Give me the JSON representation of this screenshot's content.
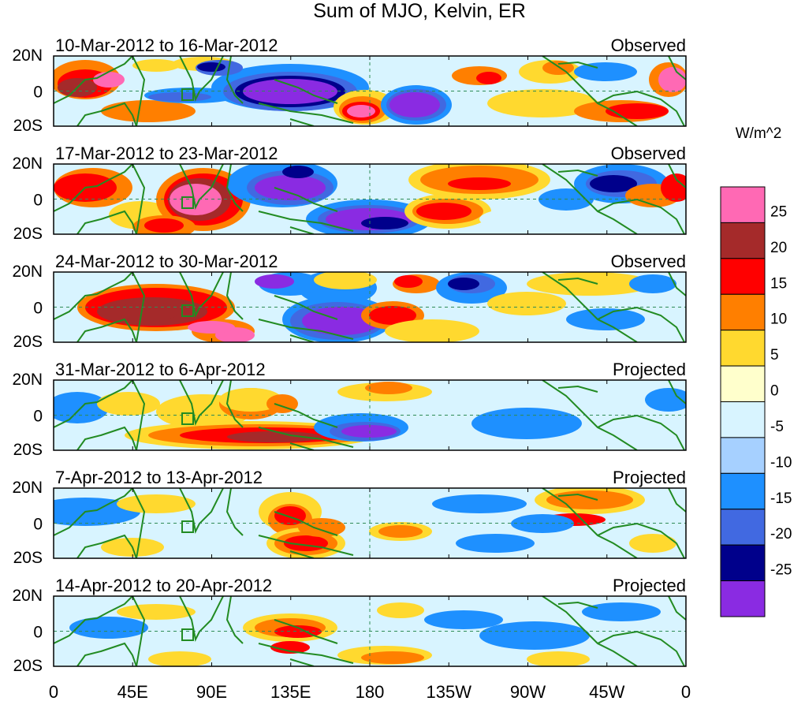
{
  "title": "Sum of MJO, Kelvin, ER",
  "units": "W/m^2",
  "lat_labels": [
    "20N",
    "0",
    "20S"
  ],
  "lon_labels": [
    "0",
    "45E",
    "90E",
    "135E",
    "180",
    "135W",
    "90W",
    "45W",
    "0"
  ],
  "panels": [
    {
      "date_range": "10-Mar-2012 to 16-Mar-2012",
      "status": "Observed"
    },
    {
      "date_range": "17-Mar-2012 to 23-Mar-2012",
      "status": "Observed"
    },
    {
      "date_range": "24-Mar-2012 to 30-Mar-2012",
      "status": "Observed"
    },
    {
      "date_range": "31-Mar-2012 to 6-Apr-2012",
      "status": "Projected"
    },
    {
      "date_range": "7-Apr-2012 to 13-Apr-2012",
      "status": "Projected"
    },
    {
      "date_range": "14-Apr-2012 to 20-Apr-2012",
      "status": "Projected"
    }
  ],
  "colorbar": {
    "colors": [
      "#ff69b4",
      "#a52a2a",
      "#ff0000",
      "#ff7f00",
      "#ffd92f",
      "#ffffcc",
      "#d8f4ff",
      "#a6d0ff",
      "#1e90ff",
      "#4169e1",
      "#00008b",
      "#8a2be2"
    ],
    "tick_labels": [
      "25",
      "20",
      "15",
      "10",
      "5",
      "0",
      "-5",
      "-10",
      "-15",
      "-20",
      "-25"
    ]
  },
  "map_colors": {
    "land": "#228b22",
    "grid": "#2e8b57"
  }
}
